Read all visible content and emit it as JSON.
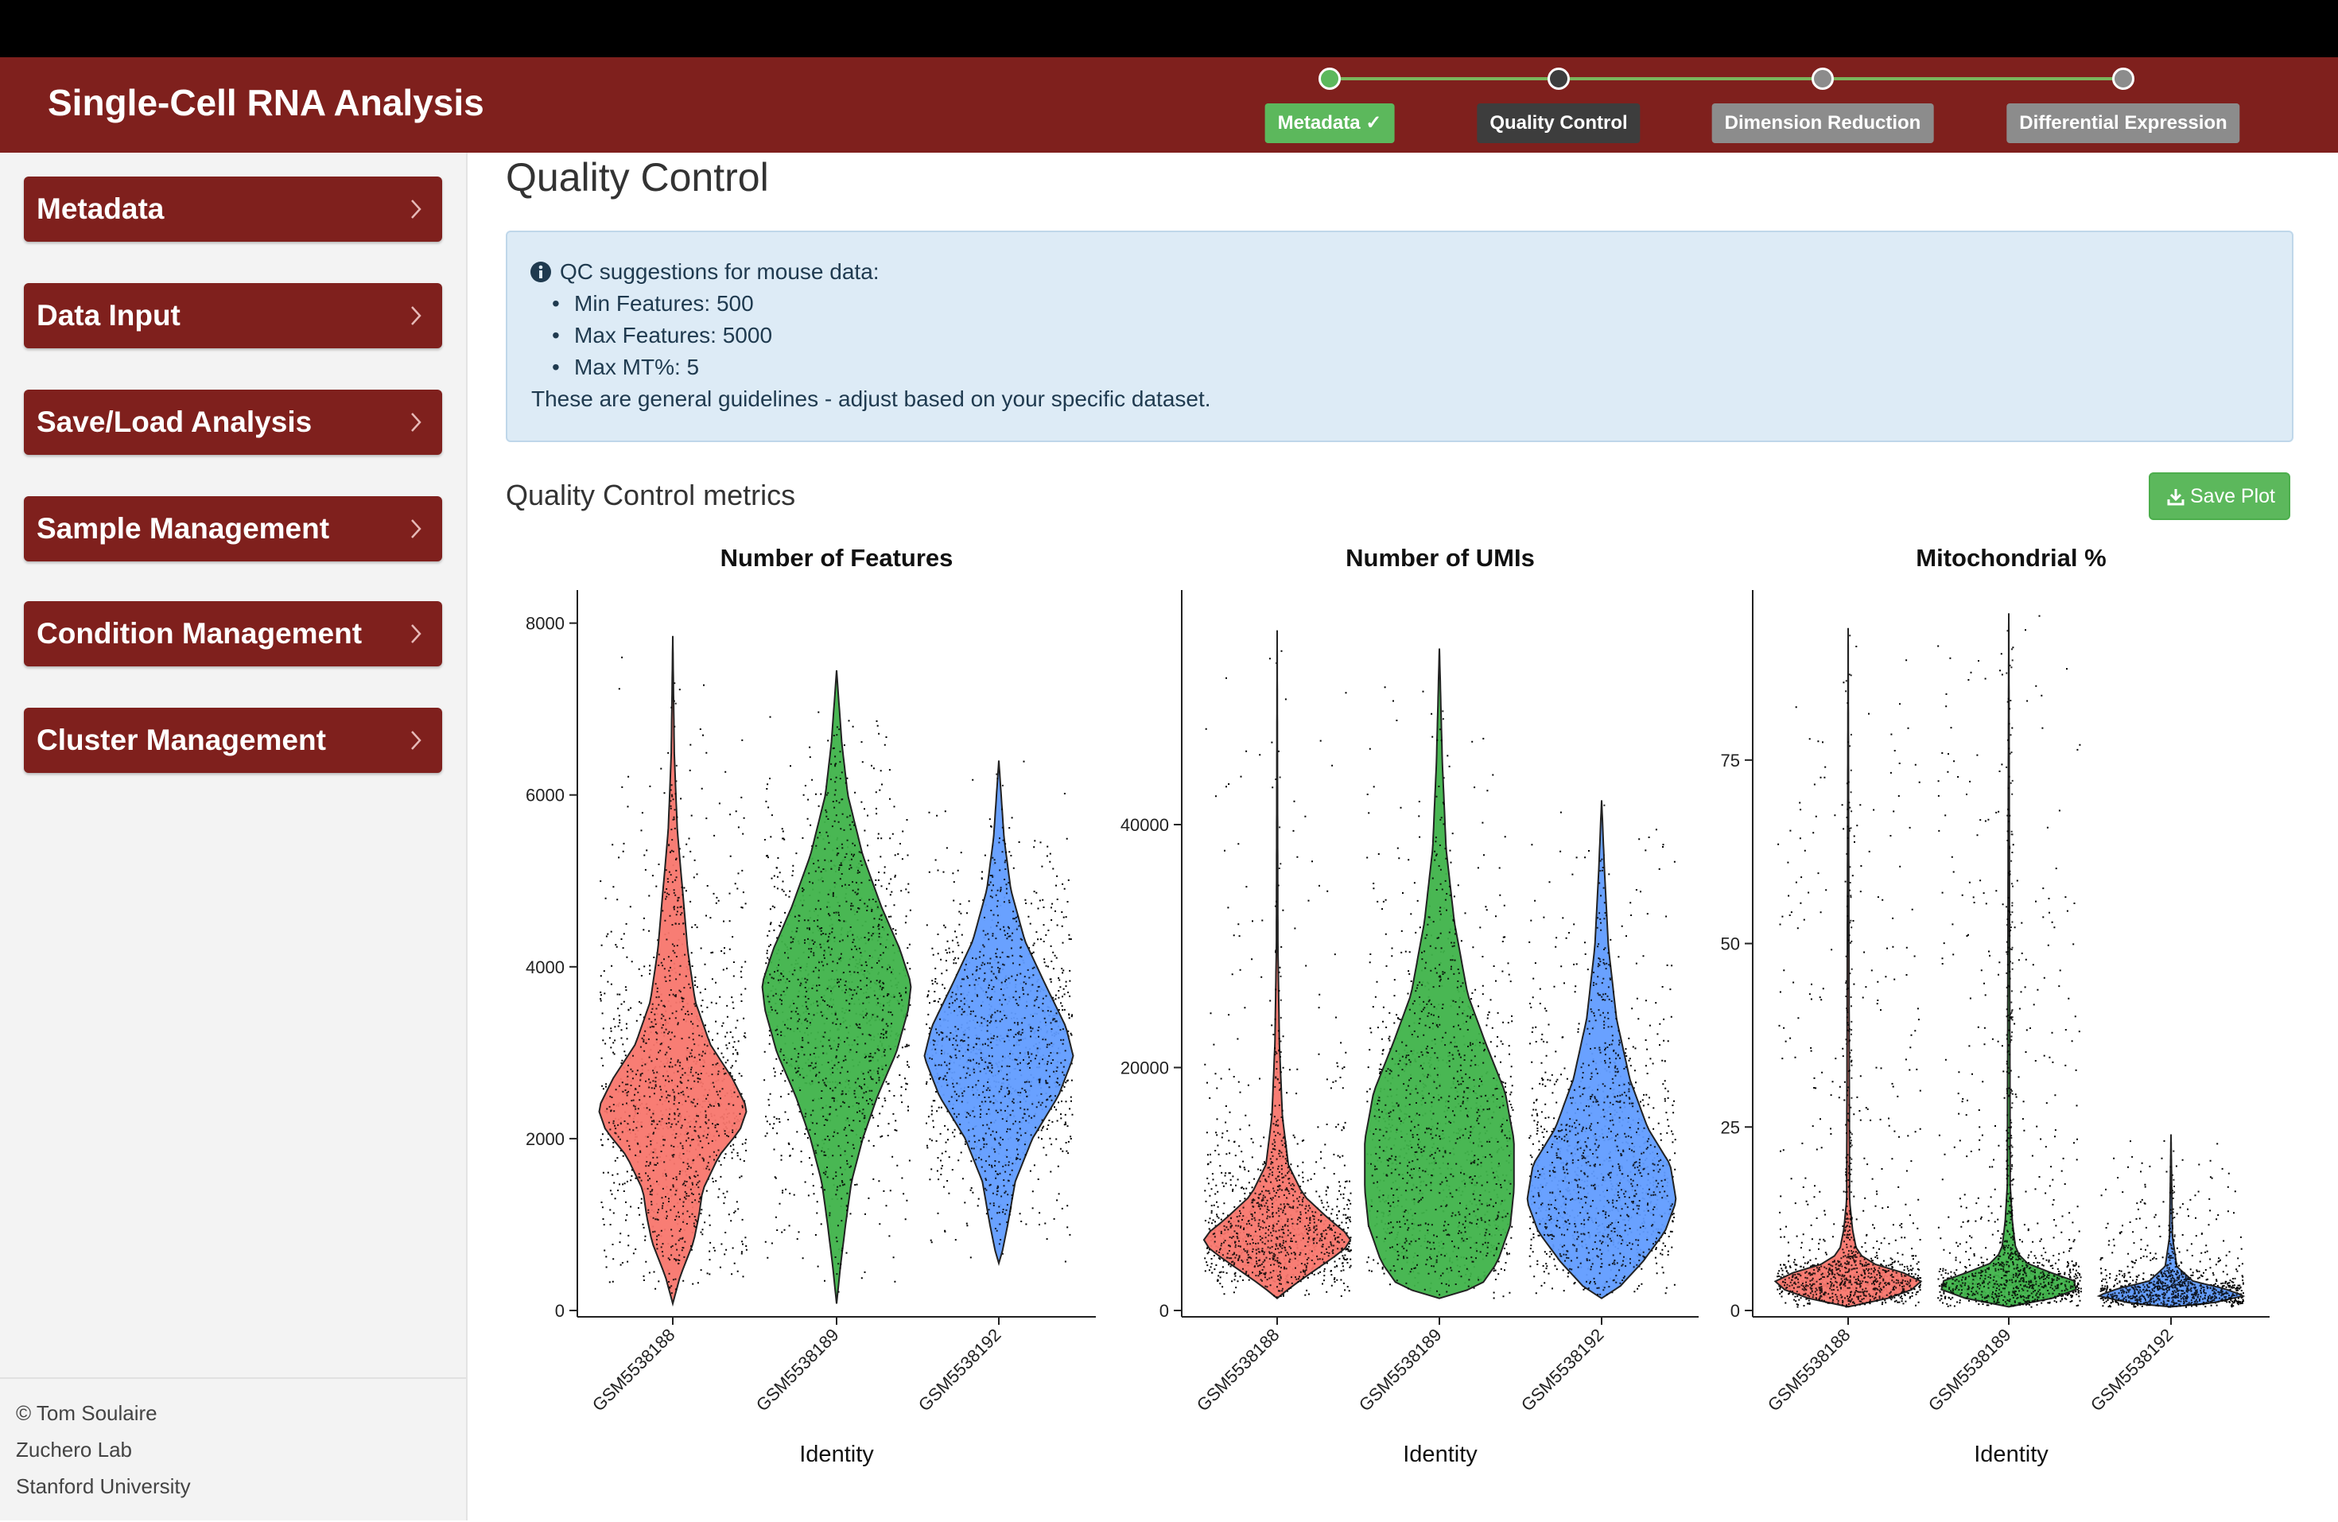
{
  "app": {
    "title": "Single-Cell RNA Analysis"
  },
  "workflow_steps": [
    {
      "label": "Metadata ✓",
      "state": "done",
      "color": "#5cb85c"
    },
    {
      "label": "Quality Control",
      "state": "active",
      "color": "#3d3d3d"
    },
    {
      "label": "Dimension Reduction",
      "state": "pending",
      "color": "#8c8c8c"
    },
    {
      "label": "Differential Expression",
      "state": "pending",
      "color": "#8c8c8c"
    }
  ],
  "sidebar": {
    "items": [
      {
        "label": "Metadata"
      },
      {
        "label": "Data Input"
      },
      {
        "label": "Save/Load Analysis"
      },
      {
        "label": "Sample Management"
      },
      {
        "label": "Condition Management"
      },
      {
        "label": "Cluster Management"
      }
    ],
    "footer": [
      "© Tom Soulaire",
      "Zuchero Lab",
      "Stanford University"
    ]
  },
  "page": {
    "title": "Quality Control"
  },
  "qc_alert": {
    "icon": "info-circle-icon",
    "heading": "QC suggestions for mouse data:",
    "items": [
      "Min Features: 500",
      "Max Features: 5000",
      "Max MT%: 5"
    ],
    "footer": "These are general guidelines - adjust based on your specific dataset."
  },
  "metrics_section": {
    "title": "Quality Control metrics",
    "save_label": "Save Plot",
    "save_icon": "download-icon"
  },
  "colors": {
    "brand": "#7f201d",
    "success": "#5cb85c",
    "alert_bg": "#ddebf6",
    "sample_colors": [
      "#f8766d",
      "#3fb34a",
      "#619cff"
    ]
  },
  "chart_data": [
    {
      "type": "violin",
      "title": "Number of Features",
      "xlabel": "Identity",
      "ylabel": "",
      "categories": [
        "GSM5538188",
        "GSM5538189",
        "GSM5538192"
      ],
      "yticks": [
        0,
        2000,
        4000,
        6000,
        8000
      ],
      "ylim": [
        0,
        8200
      ],
      "series": [
        {
          "category": "GSM5538188",
          "min": 80,
          "max": 7850,
          "mode": 2400,
          "median": 2300,
          "profile": [
            [
              80,
              0.0
            ],
            [
              400,
              0.1
            ],
            [
              800,
              0.28
            ],
            [
              1100,
              0.35
            ],
            [
              1400,
              0.4
            ],
            [
              1800,
              0.62
            ],
            [
              2100,
              0.9
            ],
            [
              2350,
              1.0
            ],
            [
              2700,
              0.8
            ],
            [
              3100,
              0.5
            ],
            [
              3600,
              0.3
            ],
            [
              4200,
              0.2
            ],
            [
              5000,
              0.12
            ],
            [
              5600,
              0.06
            ],
            [
              6500,
              0.02
            ],
            [
              7850,
              0.0
            ]
          ]
        },
        {
          "category": "GSM5538189",
          "min": 80,
          "max": 7450,
          "mode": 3600,
          "median": 3500,
          "profile": [
            [
              80,
              0.0
            ],
            [
              500,
              0.05
            ],
            [
              1000,
              0.12
            ],
            [
              1500,
              0.2
            ],
            [
              2000,
              0.35
            ],
            [
              2500,
              0.55
            ],
            [
              3000,
              0.8
            ],
            [
              3500,
              0.96
            ],
            [
              3800,
              1.0
            ],
            [
              4200,
              0.85
            ],
            [
              4700,
              0.6
            ],
            [
              5300,
              0.35
            ],
            [
              6000,
              0.15
            ],
            [
              6600,
              0.07
            ],
            [
              7450,
              0.0
            ]
          ]
        },
        {
          "category": "GSM5538192",
          "min": 550,
          "max": 6400,
          "mode": 2950,
          "median": 3000,
          "profile": [
            [
              550,
              0.0
            ],
            [
              700,
              0.05
            ],
            [
              1000,
              0.12
            ],
            [
              1500,
              0.22
            ],
            [
              2000,
              0.45
            ],
            [
              2500,
              0.8
            ],
            [
              2950,
              1.0
            ],
            [
              3300,
              0.9
            ],
            [
              3800,
              0.62
            ],
            [
              4300,
              0.35
            ],
            [
              4900,
              0.16
            ],
            [
              5500,
              0.07
            ],
            [
              6400,
              0.0
            ]
          ]
        }
      ]
    },
    {
      "type": "violin",
      "title": "Number of UMIs",
      "xlabel": "Identity",
      "ylabel": "",
      "categories": [
        "GSM5538188",
        "GSM5538189",
        "GSM5538192"
      ],
      "yticks": [
        0,
        20000,
        40000
      ],
      "ylim": [
        0,
        58000
      ],
      "series": [
        {
          "category": "GSM5538188",
          "min": 1000,
          "max": 56000,
          "mode": 6000,
          "median": 6500,
          "profile": [
            [
              1000,
              0.0
            ],
            [
              2000,
              0.2
            ],
            [
              3500,
              0.55
            ],
            [
              5000,
              0.9
            ],
            [
              6000,
              1.0
            ],
            [
              7500,
              0.7
            ],
            [
              9500,
              0.35
            ],
            [
              12000,
              0.15
            ],
            [
              16000,
              0.07
            ],
            [
              22000,
              0.03
            ],
            [
              30000,
              0.01
            ],
            [
              56000,
              0.0
            ]
          ]
        },
        {
          "category": "GSM5538189",
          "min": 1000,
          "max": 54500,
          "mode": 14000,
          "median": 13500,
          "profile": [
            [
              1000,
              0.0
            ],
            [
              2000,
              0.55
            ],
            [
              4000,
              0.78
            ],
            [
              7000,
              0.95
            ],
            [
              10000,
              1.0
            ],
            [
              14000,
              1.0
            ],
            [
              18000,
              0.88
            ],
            [
              22000,
              0.62
            ],
            [
              26000,
              0.38
            ],
            [
              32000,
              0.2
            ],
            [
              38000,
              0.09
            ],
            [
              45000,
              0.04
            ],
            [
              54500,
              0.0
            ]
          ]
        },
        {
          "category": "GSM5538192",
          "min": 1000,
          "max": 42000,
          "mode": 10000,
          "median": 10500,
          "profile": [
            [
              1000,
              0.0
            ],
            [
              2000,
              0.25
            ],
            [
              4000,
              0.55
            ],
            [
              6500,
              0.85
            ],
            [
              9000,
              1.0
            ],
            [
              12000,
              0.92
            ],
            [
              15000,
              0.62
            ],
            [
              19000,
              0.38
            ],
            [
              24000,
              0.2
            ],
            [
              30000,
              0.09
            ],
            [
              36000,
              0.04
            ],
            [
              42000,
              0.0
            ]
          ]
        }
      ]
    },
    {
      "type": "violin",
      "title": "Mitochondrial %",
      "xlabel": "Identity",
      "ylabel": "",
      "categories": [
        "GSM5538188",
        "GSM5538189",
        "GSM5538192"
      ],
      "yticks": [
        0,
        25,
        50,
        75
      ],
      "ylim": [
        0,
        96
      ],
      "series": [
        {
          "category": "GSM5538188",
          "min": 0.5,
          "max": 93,
          "mode": 4,
          "median": 4,
          "profile": [
            [
              0.5,
              0.0
            ],
            [
              1.5,
              0.5
            ],
            [
              3,
              0.92
            ],
            [
              4,
              1.0
            ],
            [
              5,
              0.8
            ],
            [
              6.5,
              0.3
            ],
            [
              8,
              0.12
            ],
            [
              11,
              0.06
            ],
            [
              15,
              0.02
            ],
            [
              93,
              0.0
            ]
          ]
        },
        {
          "category": "GSM5538189",
          "min": 0.5,
          "max": 95,
          "mode": 3.5,
          "median": 3.5,
          "profile": [
            [
              0.5,
              0.0
            ],
            [
              1.5,
              0.55
            ],
            [
              3,
              0.96
            ],
            [
              3.5,
              1.0
            ],
            [
              4.5,
              0.8
            ],
            [
              6,
              0.3
            ],
            [
              8,
              0.1
            ],
            [
              12,
              0.05
            ],
            [
              17,
              0.02
            ],
            [
              95,
              0.0
            ]
          ]
        },
        {
          "category": "GSM5538192",
          "min": 0.5,
          "max": 24,
          "mode": 2,
          "median": 2,
          "profile": [
            [
              0.5,
              0.0
            ],
            [
              1,
              0.55
            ],
            [
              2,
              1.0
            ],
            [
              3,
              0.72
            ],
            [
              4,
              0.3
            ],
            [
              6,
              0.08
            ],
            [
              10,
              0.02
            ],
            [
              24,
              0.0
            ]
          ]
        }
      ]
    }
  ]
}
